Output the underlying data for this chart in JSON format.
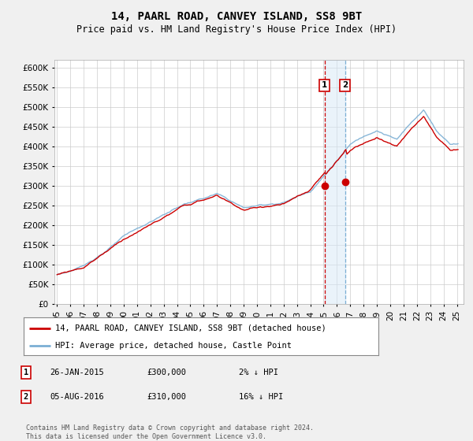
{
  "title": "14, PAARL ROAD, CANVEY ISLAND, SS8 9BT",
  "subtitle": "Price paid vs. HM Land Registry's House Price Index (HPI)",
  "ylim": [
    0,
    620000
  ],
  "ytick_vals": [
    0,
    50000,
    100000,
    150000,
    200000,
    250000,
    300000,
    350000,
    400000,
    450000,
    500000,
    550000,
    600000
  ],
  "hpi_color": "#7bafd4",
  "property_color": "#cc0000",
  "transaction1_date": 2015.07,
  "transaction1_price": 300000,
  "transaction2_date": 2016.6,
  "transaction2_price": 310000,
  "vline1_color": "#cc0000",
  "vline1_style": "--",
  "vline2_color": "#7bafd4",
  "vline2_style": "--",
  "shade_color": "#d6e8f7",
  "shade_alpha": 0.5,
  "legend_property": "14, PAARL ROAD, CANVEY ISLAND, SS8 9BT (detached house)",
  "legend_hpi": "HPI: Average price, detached house, Castle Point",
  "table_rows": [
    {
      "num": "1",
      "date": "26-JAN-2015",
      "price": "£300,000",
      "pct": "2% ↓ HPI"
    },
    {
      "num": "2",
      "date": "05-AUG-2016",
      "price": "£310,000",
      "pct": "16% ↓ HPI"
    }
  ],
  "footer": "Contains HM Land Registry data © Crown copyright and database right 2024.\nThis data is licensed under the Open Government Licence v3.0.",
  "background_color": "#f0f0f0",
  "plot_bg_color": "#ffffff",
  "xlim_left": 1994.8,
  "xlim_right": 2025.5
}
